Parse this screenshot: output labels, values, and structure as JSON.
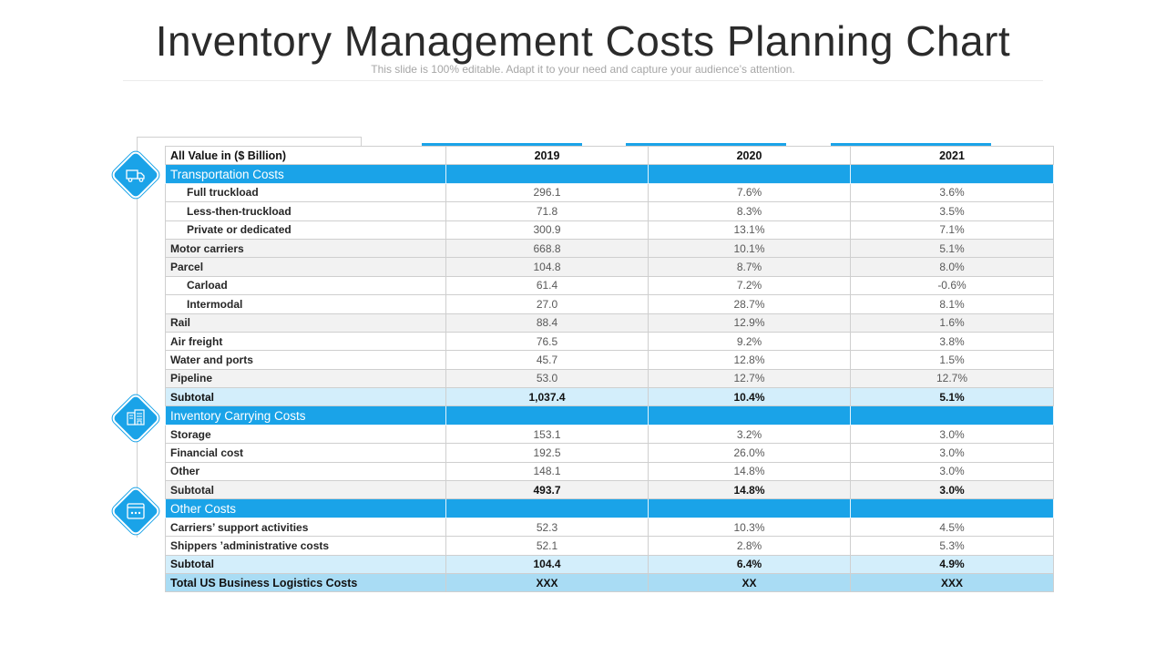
{
  "title": "Inventory Management Costs Planning Chart",
  "subtitle": "This slide is 100% editable. Adapt it to your need and capture your audience’s attention.",
  "icons": [
    "truck-icon",
    "warehouse-icon",
    "browser-window-icon"
  ],
  "accent_color": "#1aa3e8",
  "table": {
    "header": {
      "label": "All Value in ($ Billion)",
      "years": [
        "2019",
        "2020",
        "2021"
      ]
    },
    "rows": [
      {
        "label": "Transportation Costs",
        "values": [
          "",
          "",
          ""
        ]
      },
      {
        "label": "Full  truckload",
        "values": [
          "296.1",
          "7.6%",
          "3.6%"
        ]
      },
      {
        "label": "Less-then-truckload",
        "values": [
          "71.8",
          "8.3%",
          "3.5%"
        ]
      },
      {
        "label": "Private or dedicated",
        "values": [
          "300.9",
          "13.1%",
          "7.1%"
        ]
      },
      {
        "label": "Motor carriers",
        "values": [
          "668.8",
          "10.1%",
          "5.1%"
        ]
      },
      {
        "label": "Parcel",
        "values": [
          "104.8",
          "8.7%",
          "8.0%"
        ]
      },
      {
        "label": "Carload",
        "values": [
          "61.4",
          "7.2%",
          "-0.6%"
        ]
      },
      {
        "label": "Intermodal",
        "values": [
          "27.0",
          "28.7%",
          "8.1%"
        ]
      },
      {
        "label": "Rail",
        "values": [
          "88.4",
          "12.9%",
          "1.6%"
        ]
      },
      {
        "label": "Air freight",
        "values": [
          "76.5",
          "9.2%",
          "3.8%"
        ]
      },
      {
        "label": "Water and ports",
        "values": [
          "45.7",
          "12.8%",
          "1.5%"
        ]
      },
      {
        "label": "Pipeline",
        "values": [
          "53.0",
          "12.7%",
          "12.7%"
        ]
      },
      {
        "label": "Subtotal",
        "values": [
          "1,037.4",
          "10.4%",
          "5.1%"
        ]
      },
      {
        "label": "Inventory Carrying Costs",
        "values": [
          "",
          "",
          ""
        ]
      },
      {
        "label": "Storage",
        "values": [
          "153.1",
          "3.2%",
          "3.0%"
        ]
      },
      {
        "label": "Financial  cost",
        "values": [
          "192.5",
          "26.0%",
          "3.0%"
        ]
      },
      {
        "label": "Other",
        "values": [
          "148.1",
          "14.8%",
          "3.0%"
        ]
      },
      {
        "label": "Subtotal",
        "values": [
          "493.7",
          "14.8%",
          "3.0%"
        ]
      },
      {
        "label": "Other Costs",
        "values": [
          "",
          "",
          ""
        ]
      },
      {
        "label": "Carriers’ support  activities",
        "values": [
          "52.3",
          "10.3%",
          "4.5%"
        ]
      },
      {
        "label": "Shippers ’administrative costs",
        "values": [
          "52.1",
          "2.8%",
          "5.3%"
        ]
      },
      {
        "label": "Subtotal",
        "values": [
          "104.4",
          "6.4%",
          "4.9%"
        ]
      },
      {
        "label": "Total US Business  Logistics   Costs",
        "values": [
          "XXX",
          "XX",
          "XXX"
        ]
      }
    ]
  }
}
